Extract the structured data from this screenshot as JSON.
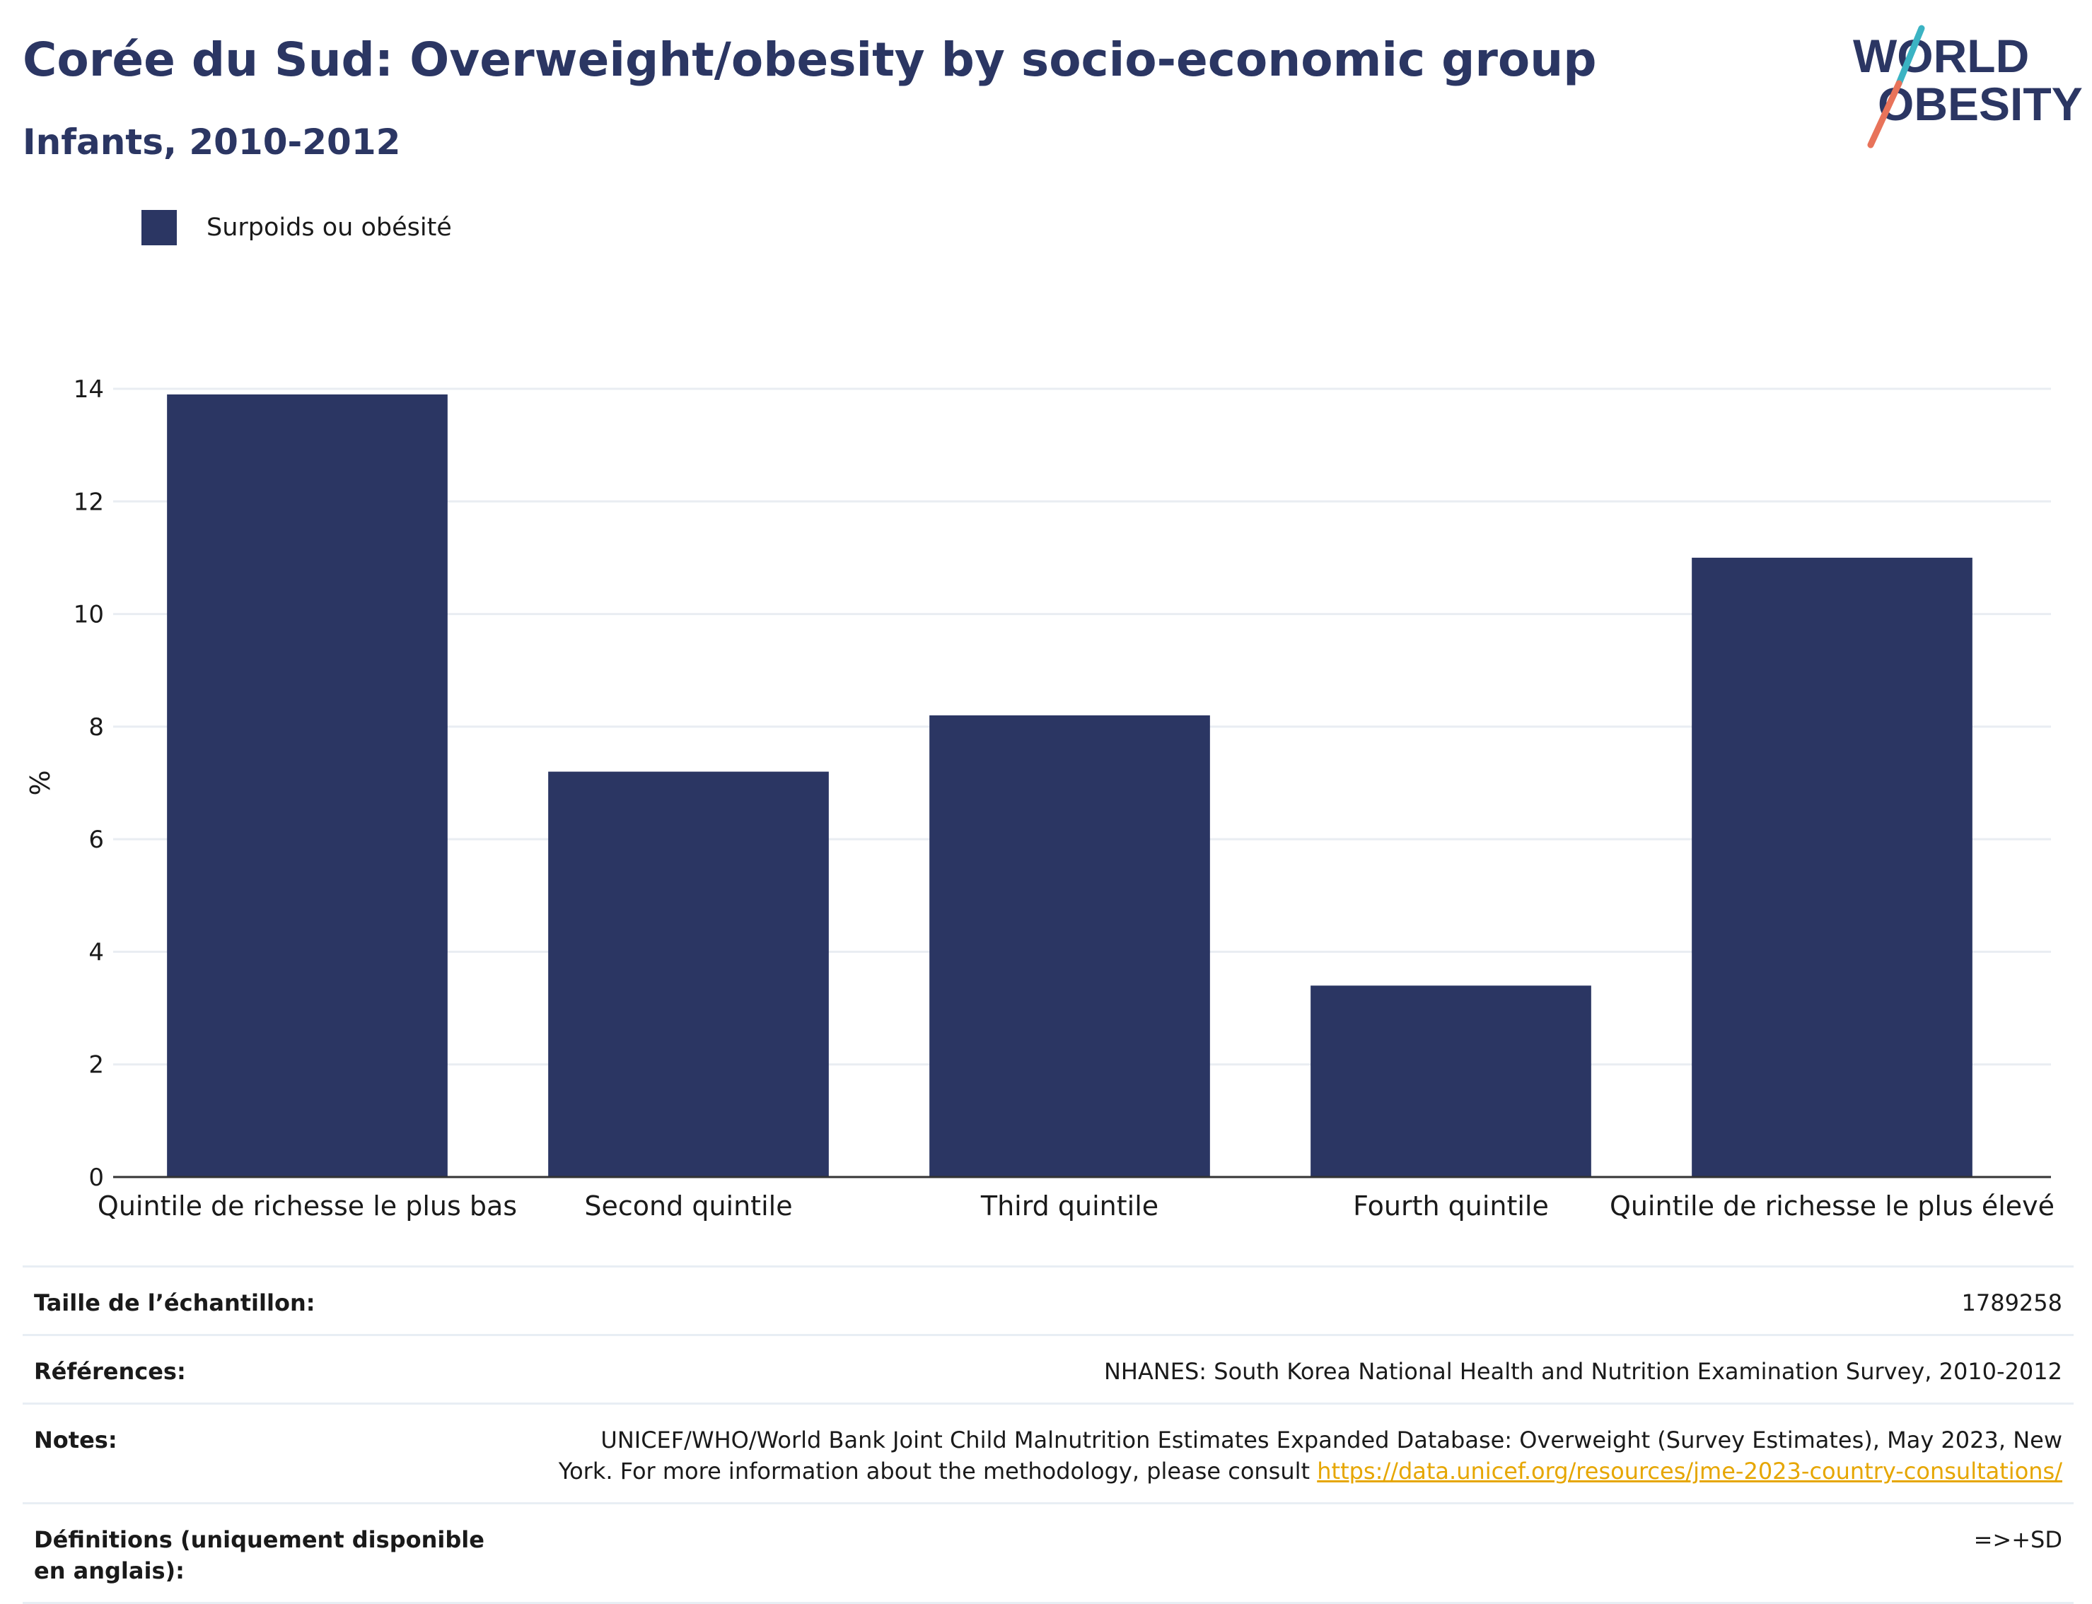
{
  "header": {
    "title": "Corée du Sud: Overweight/obesity by socio-economic group",
    "subtitle": "Infants, 2010-2012"
  },
  "logo": {
    "line1": "WORLD",
    "line2": "OBESITY",
    "colors": {
      "text": "#2b3663",
      "slash_top": "#3bb3c3",
      "slash_bottom": "#e8735a"
    }
  },
  "legend": {
    "label": "Surpoids ou obésité"
  },
  "colors": {
    "bar": "#2b3663",
    "grid": "#e9edf2",
    "axis": "#333333"
  },
  "chart_data": {
    "type": "bar",
    "categories": [
      "Quintile de richesse le plus bas",
      "Second quintile",
      "Third quintile",
      "Fourth quintile",
      "Quintile de richesse le plus élevé"
    ],
    "series": [
      {
        "name": "Surpoids ou obésité",
        "values": [
          13.9,
          7.2,
          8.2,
          3.4,
          11.0
        ]
      }
    ],
    "ylabel": "%",
    "ylim": [
      0,
      14
    ],
    "yticks": [
      0,
      2,
      4,
      6,
      8,
      10,
      12,
      14
    ],
    "grid": true,
    "legend_position": "top-left"
  },
  "info": {
    "sample_size": {
      "label": "Taille de l’échantillon:",
      "value": "1789258"
    },
    "references": {
      "label": "Références:",
      "value": "NHANES: South Korea National Health and Nutrition Examination Survey, 2010-2012"
    },
    "notes": {
      "label": "Notes:",
      "value_line1": "UNICEF/WHO/World Bank Joint Child Malnutrition Estimates Expanded Database: Overweight (Survey Estimates), May 2023, New",
      "value_line2": "York. For more information about the methodology, please consult ",
      "link": "https://data.unicef.org/resources/jme-2023-country-consultations/"
    },
    "definitions": {
      "label": "Définitions (uniquement disponible en anglais):",
      "value": "=>+SD"
    }
  }
}
